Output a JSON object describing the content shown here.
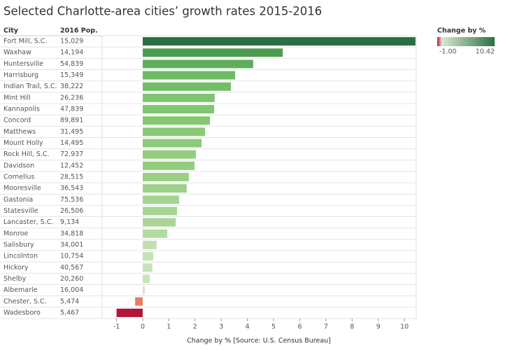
{
  "chart_data": {
    "type": "bar",
    "title": "Selected Charlotte-area cities’ growth rates 2015-2016",
    "column_headers": [
      "City",
      "2016 Pop."
    ],
    "categories": [
      "Fort Mill, S.C.",
      "Waxhaw",
      "Huntersville",
      "Harrisburg",
      "Indian Trail, S.C.",
      "Mint Hill",
      "Kannapolis",
      "Concord",
      "Matthews",
      "Mount Holly",
      "Rock Hill, S.C.",
      "Davidson",
      "Cornelius",
      "Mooresville",
      "Gastonia",
      "Statesville",
      "Lancaster, S.C.",
      "Monroe",
      "Salisbury",
      "Lincolnton",
      "Hickory",
      "Shelby",
      "Albemarle",
      "Chester, S.C.",
      "Wadesboro"
    ],
    "population": [
      "15,029",
      "14,194",
      "54,839",
      "15,349",
      "38,222",
      "26,236",
      "47,839",
      "89,891",
      "31,495",
      "14,495",
      "72,937",
      "12,452",
      "28,515",
      "36,543",
      "75,536",
      "26,506",
      "9,134",
      "34,818",
      "34,001",
      "10,754",
      "40,567",
      "20,260",
      "16,004",
      "5,474",
      "5,467"
    ],
    "values": [
      10.42,
      5.35,
      4.22,
      3.53,
      3.37,
      2.75,
      2.73,
      2.57,
      2.38,
      2.25,
      2.03,
      1.98,
      1.76,
      1.68,
      1.39,
      1.31,
      1.26,
      0.94,
      0.53,
      0.4,
      0.37,
      0.27,
      0.08,
      -0.29,
      -1.0
    ],
    "colors": [
      "#2b6e42",
      "#4e9c52",
      "#5fae5c",
      "#6fbb63",
      "#72bd65",
      "#7fc56e",
      "#80c66f",
      "#84c872",
      "#88ca76",
      "#8ccb79",
      "#91cd7d",
      "#92ce7e",
      "#98d084",
      "#9bd186",
      "#a4d491",
      "#a7d594",
      "#a9d696",
      "#b3da9f",
      "#c1e0b1",
      "#c5e2b6",
      "#c6e2b7",
      "#c9e3bb",
      "#d3e7c9",
      "#e97b66",
      "#b0163a"
    ],
    "xlabel": "Change by % [Source: U.S. Census Bureau]",
    "xlim": [
      -1.55,
      10.45
    ],
    "xticks": [
      -1,
      0,
      1,
      2,
      3,
      4,
      5,
      6,
      7,
      8,
      9,
      10
    ],
    "legend": {
      "title": "Change by %",
      "range": [
        {
          "value": -1,
          "label": "-1.00"
        },
        {
          "value": 10.42,
          "label": "10.42"
        }
      ],
      "colors": {
        "low": "#b0163a",
        "zero": "#f3ede9",
        "near_zero": "#d6e9cf",
        "high": "#2b6e42"
      }
    }
  }
}
